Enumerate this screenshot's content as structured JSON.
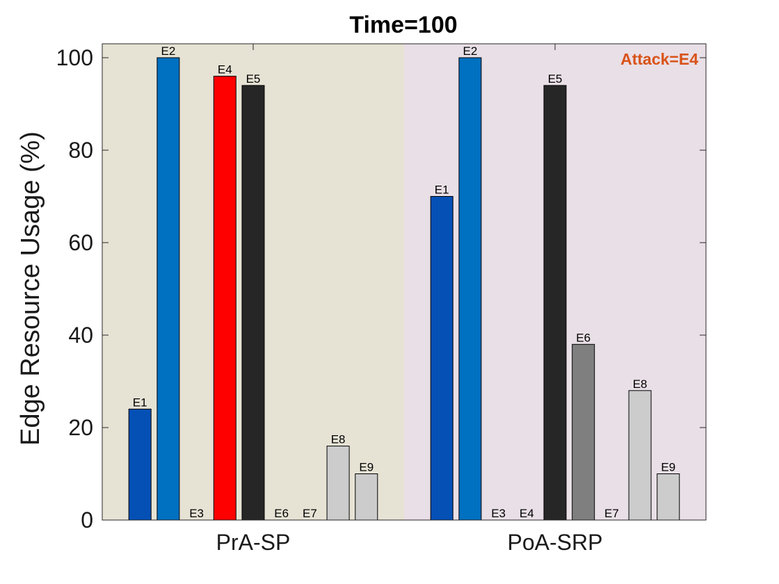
{
  "chart_data": {
    "type": "bar",
    "title": "Time=100",
    "xlabel": "",
    "ylabel": "Edge Resource Usage (%)",
    "ylim": [
      0,
      100
    ],
    "yticks": [
      0,
      20,
      40,
      60,
      80,
      100
    ],
    "grid": false,
    "groups": [
      {
        "name": "PrA-SP",
        "background": "#e6e3d5",
        "bars": [
          {
            "label": "E1",
            "value": 24,
            "color": "#0450b5"
          },
          {
            "label": "E2",
            "value": 100,
            "color": "#0070c0"
          },
          {
            "label": "E3",
            "value": 0,
            "color": "#a0a0a0"
          },
          {
            "label": "E4",
            "value": 96,
            "color": "#ff0000"
          },
          {
            "label": "E5",
            "value": 94,
            "color": "#262626"
          },
          {
            "label": "E6",
            "value": 0,
            "color": "#7f7f7f"
          },
          {
            "label": "E7",
            "value": 0,
            "color": "#a0a0a0"
          },
          {
            "label": "E8",
            "value": 16,
            "color": "#cccccc"
          },
          {
            "label": "E9",
            "value": 10,
            "color": "#cccccc"
          }
        ]
      },
      {
        "name": "PoA-SRP",
        "background": "#e9dfe6",
        "bars": [
          {
            "label": "E1",
            "value": 70,
            "color": "#0450b5"
          },
          {
            "label": "E2",
            "value": 100,
            "color": "#0070c0"
          },
          {
            "label": "E3",
            "value": 0,
            "color": "#a0a0a0"
          },
          {
            "label": "E4",
            "value": 0,
            "color": "#ff0000"
          },
          {
            "label": "E5",
            "value": 94,
            "color": "#262626"
          },
          {
            "label": "E6",
            "value": 38,
            "color": "#7f7f7f"
          },
          {
            "label": "E7",
            "value": 0,
            "color": "#a0a0a0"
          },
          {
            "label": "E8",
            "value": 28,
            "color": "#cccccc"
          },
          {
            "label": "E9",
            "value": 10,
            "color": "#cccccc"
          }
        ]
      }
    ],
    "annotations": [
      {
        "text": "Attack=E4",
        "color": "#d95319",
        "placement": "top-right"
      }
    ]
  }
}
